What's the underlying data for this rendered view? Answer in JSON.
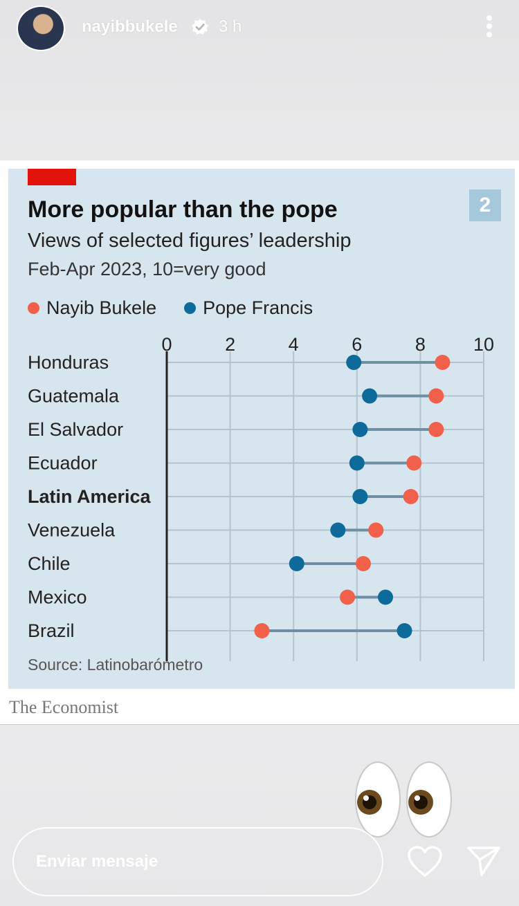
{
  "story": {
    "username": "nayibbukele",
    "time_ago": "3 h"
  },
  "post": {
    "badge_number": "2",
    "title": "More popular than the pope",
    "subtitle": "Views of selected figures’ leadership",
    "note": "Feb-Apr 2023, 10=very good",
    "source": "Source: Latinobarómetro",
    "brand": "The Economist"
  },
  "chart_data": {
    "type": "dumbbell",
    "xlim": [
      0,
      10
    ],
    "xticks": [
      "0",
      "2",
      "4",
      "6",
      "8",
      "10"
    ],
    "grid": true,
    "legend_position": "top-left",
    "categories": [
      "Honduras",
      "Guatemala",
      "El Salvador",
      "Ecuador",
      "Latin America",
      "Venezuela",
      "Chile",
      "Mexico",
      "Brazil"
    ],
    "bold_category": "Latin America",
    "series": [
      {
        "name": "Nayib Bukele",
        "color": "#f0604a",
        "values": [
          8.7,
          8.5,
          8.5,
          7.8,
          7.7,
          6.6,
          6.2,
          5.7,
          3.0
        ]
      },
      {
        "name": "Pope Francis",
        "color": "#0e6a9a",
        "values": [
          5.9,
          6.4,
          6.1,
          6.0,
          6.1,
          5.4,
          4.1,
          6.9,
          7.5
        ]
      }
    ]
  },
  "footer": {
    "message_placeholder": "Enviar mensaje"
  },
  "icons": {
    "verified": "verified-badge-icon",
    "more": "more-vertical-icon",
    "like": "heart-icon",
    "send": "send-icon",
    "sticker": "eyes-emoji-icon"
  }
}
